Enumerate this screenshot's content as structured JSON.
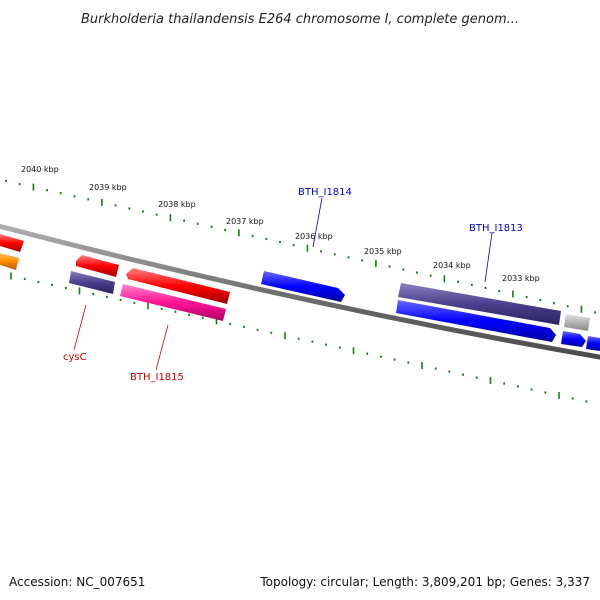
{
  "title": "Burkholderia thailandensis E264 chromosome I, complete genom...",
  "footer": {
    "accession": "Accession: NC_007651",
    "summary": "Topology: circular; Length: 3,809,201 bp; Genes: 3,337"
  },
  "colors": {
    "backbone": "#808080",
    "tick": "#1a7a1a",
    "label_blue": "#0000cc",
    "label_red": "#cc0000",
    "red": "#ff0000",
    "blue": "#0000ff",
    "navy": "#4a3f8c",
    "pink": "#ff1493",
    "orange": "#ff8c00",
    "gray": "#b4b4b4"
  },
  "ruler": {
    "outer_labels": [
      "2040 kbp",
      "2039 kbp",
      "2038 kbp",
      "2037 kbp",
      "2036 kbp",
      "2035 kbp",
      "2034 kbp",
      "2033 kbp"
    ]
  },
  "genes": [
    {
      "name": "BTH_I1814",
      "color": "blue"
    },
    {
      "name": "BTH_I1813",
      "color": "navy"
    },
    {
      "name": "cysC",
      "color": "navy"
    },
    {
      "name": "BTH_I1815",
      "color": "pink"
    }
  ]
}
